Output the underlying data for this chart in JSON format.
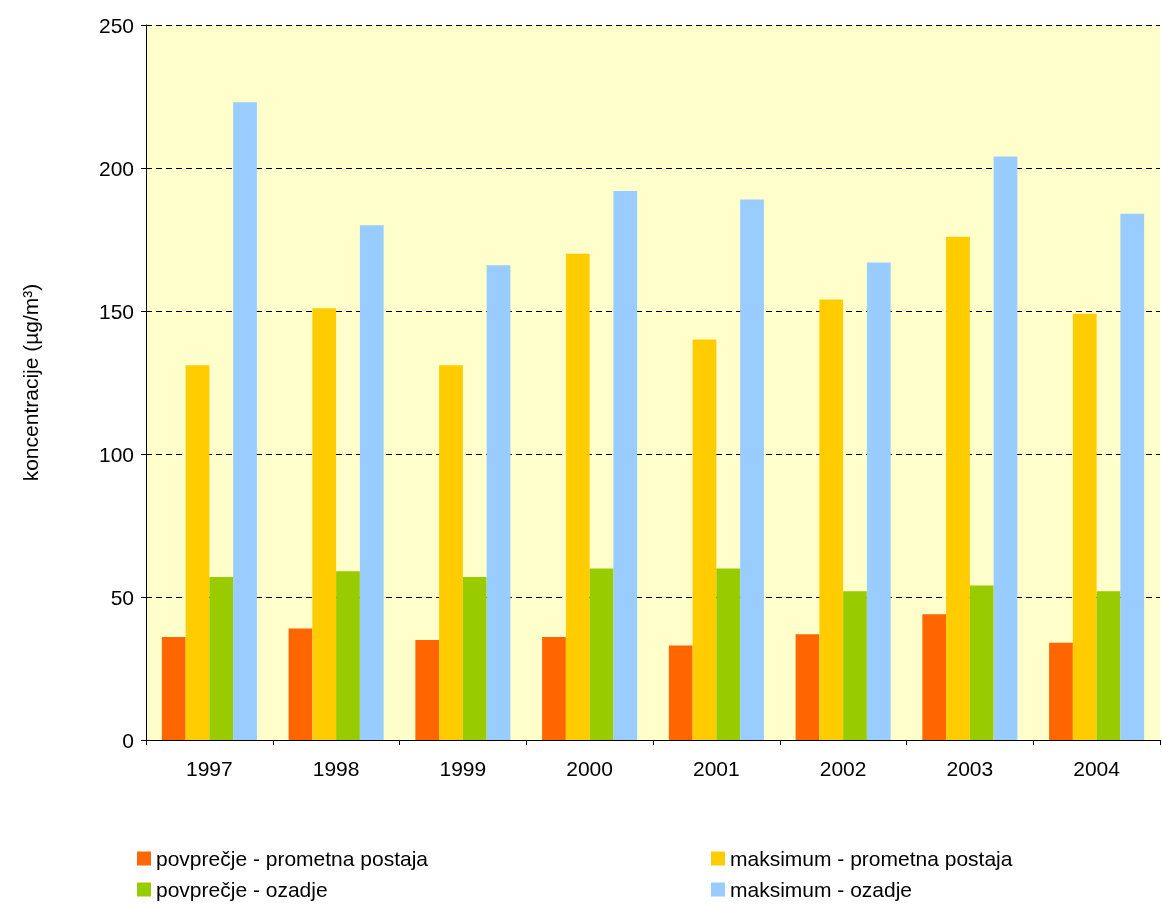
{
  "chart_data": {
    "type": "bar",
    "categories": [
      "1997",
      "1998",
      "1999",
      "2000",
      "2001",
      "2002",
      "2003",
      "2004"
    ],
    "ylabel": "koncentracije (µg/m³)",
    "series": [
      {
        "name": "povprečje - prometna postaja",
        "color": "#ff6600",
        "values": [
          36,
          39,
          35,
          36,
          33,
          37,
          44,
          34
        ]
      },
      {
        "name": "maksimum - prometna postaja",
        "color": "#ffcc00",
        "values": [
          131,
          151,
          131,
          170,
          140,
          154,
          176,
          149
        ]
      },
      {
        "name": "povprečje - ozadje",
        "color": "#99cc00",
        "values": [
          57,
          59,
          57,
          60,
          60,
          52,
          54,
          52
        ]
      },
      {
        "name": "maksimum - ozadje",
        "color": "#99ccff",
        "values": [
          223,
          180,
          166,
          192,
          189,
          167,
          204,
          184
        ]
      }
    ],
    "ylim": [
      0,
      250
    ],
    "yticks": [
      0,
      50,
      100,
      150,
      200,
      250
    ],
    "grid": "y",
    "legend": "bottom"
  }
}
